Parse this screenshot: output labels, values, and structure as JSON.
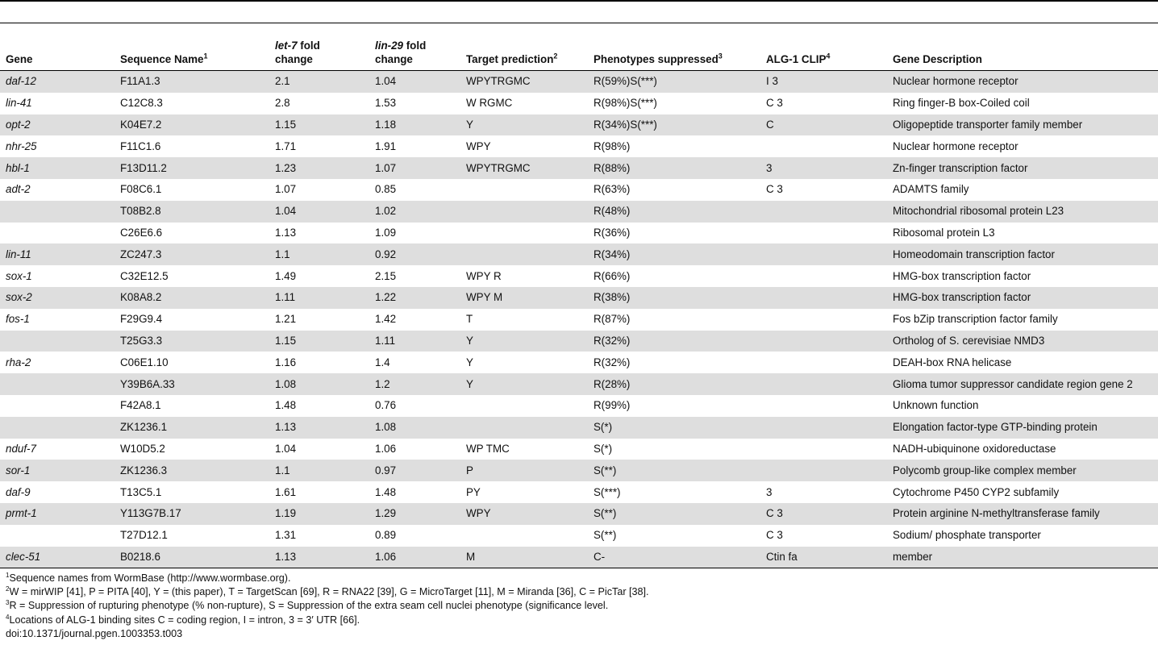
{
  "header": {
    "gene": "Gene",
    "sequence": "Sequence Name",
    "sequence_sup": "1",
    "let7_italic": "let-7",
    "let7_rest": " fold",
    "let7_line2": "change",
    "lin29_italic": "lin-29",
    "lin29_rest": " fold",
    "lin29_line2": "change",
    "target": "Target prediction",
    "target_sup": "2",
    "pheno": "Phenotypes suppressed",
    "pheno_sup": "3",
    "clip": "ALG-1 CLIP",
    "clip_sup": "4",
    "desc": "Gene Description"
  },
  "rows": [
    {
      "gene": "daf-12",
      "seq": "F11A1.3",
      "let7": "2.1",
      "lin29": "1.04",
      "target": "WPYTRGMC",
      "pheno": "R(59%)S(***)",
      "clip": "I 3",
      "desc": "Nuclear hormone receptor"
    },
    {
      "gene": "lin-41",
      "seq": "C12C8.3",
      "let7": "2.8",
      "lin29": "1.53",
      "target": "W RGMC",
      "pheno": "R(98%)S(***)",
      "clip": "C 3",
      "desc": "Ring finger-B box-Coiled coil"
    },
    {
      "gene": "opt-2",
      "seq": "K04E7.2",
      "let7": "1.15",
      "lin29": "1.18",
      "target": "Y",
      "pheno": "R(34%)S(***)",
      "clip": "C",
      "desc": "Oligopeptide transporter family member"
    },
    {
      "gene": "nhr-25",
      "seq": "F11C1.6",
      "let7": "1.71",
      "lin29": "1.91",
      "target": "WPY",
      "pheno": "R(98%)",
      "clip": "",
      "desc": "Nuclear hormone receptor"
    },
    {
      "gene": "hbl-1",
      "seq": "F13D11.2",
      "let7": "1.23",
      "lin29": "1.07",
      "target": "WPYTRGMC",
      "pheno": "R(88%)",
      "clip": "3",
      "desc": "Zn-finger transcription factor"
    },
    {
      "gene": "adt-2",
      "seq": "F08C6.1",
      "let7": "1.07",
      "lin29": "0.85",
      "target": "",
      "pheno": "R(63%)",
      "clip": "C 3",
      "desc": "ADAMTS family"
    },
    {
      "gene": "",
      "seq": "T08B2.8",
      "let7": "1.04",
      "lin29": "1.02",
      "target": "",
      "pheno": "R(48%)",
      "clip": "",
      "desc": "Mitochondrial ribosomal protein L23"
    },
    {
      "gene": "",
      "seq": "C26E6.6",
      "let7": "1.13",
      "lin29": "1.09",
      "target": "",
      "pheno": "R(36%)",
      "clip": "",
      "desc": "Ribosomal protein L3"
    },
    {
      "gene": "lin-11",
      "seq": "ZC247.3",
      "let7": "1.1",
      "lin29": "0.92",
      "target": "",
      "pheno": "R(34%)",
      "clip": "",
      "desc": "Homeodomain transcription factor"
    },
    {
      "gene": "sox-1",
      "seq": "C32E12.5",
      "let7": "1.49",
      "lin29": "2.15",
      "target": "WPY R",
      "pheno": "R(66%)",
      "clip": "",
      "desc": "HMG-box transcription factor"
    },
    {
      "gene": "sox-2",
      "seq": "K08A8.2",
      "let7": "1.11",
      "lin29": "1.22",
      "target": "WPY M",
      "pheno": "R(38%)",
      "clip": "",
      "desc": "HMG-box transcription factor"
    },
    {
      "gene": "fos-1",
      "seq": "F29G9.4",
      "let7": "1.21",
      "lin29": "1.42",
      "target": "T",
      "pheno": "R(87%)",
      "clip": "",
      "desc": "Fos bZip transcription factor family"
    },
    {
      "gene": "",
      "seq": "T25G3.3",
      "let7": "1.15",
      "lin29": "1.11",
      "target": "Y",
      "pheno": "R(32%)",
      "clip": "",
      "desc": "Ortholog of S. cerevisiae NMD3"
    },
    {
      "gene": "rha-2",
      "seq": "C06E1.10",
      "let7": "1.16",
      "lin29": "1.4",
      "target": "Y",
      "pheno": "R(32%)",
      "clip": "",
      "desc": "DEAH-box RNA helicase"
    },
    {
      "gene": "",
      "seq": "Y39B6A.33",
      "let7": "1.08",
      "lin29": "1.2",
      "target": "Y",
      "pheno": "R(28%)",
      "clip": "",
      "desc": "Glioma tumor suppressor candidate region gene 2"
    },
    {
      "gene": "",
      "seq": "F42A8.1",
      "let7": "1.48",
      "lin29": "0.76",
      "target": "",
      "pheno": "R(99%)",
      "clip": "",
      "desc": "Unknown function"
    },
    {
      "gene": "",
      "seq": "ZK1236.1",
      "let7": "1.13",
      "lin29": "1.08",
      "target": "",
      "pheno": "S(*)",
      "clip": "",
      "desc": "Elongation factor-type GTP-binding protein"
    },
    {
      "gene": "nduf-7",
      "seq": "W10D5.2",
      "let7": "1.04",
      "lin29": "1.06",
      "target": "WP TMC",
      "pheno": "S(*)",
      "clip": "",
      "desc": "NADH-ubiquinone oxidoreductase"
    },
    {
      "gene": "sor-1",
      "seq": "ZK1236.3",
      "let7": "1.1",
      "lin29": "0.97",
      "target": "P",
      "pheno": "S(**)",
      "clip": "",
      "desc": "Polycomb group-like complex member"
    },
    {
      "gene": "daf-9",
      "seq": "T13C5.1",
      "let7": "1.61",
      "lin29": "1.48",
      "target": "PY",
      "pheno": "S(***)",
      "clip": "3",
      "desc": "Cytochrome P450 CYP2 subfamily"
    },
    {
      "gene": "prmt-1",
      "seq": "Y113G7B.17",
      "let7": "1.19",
      "lin29": "1.29",
      "target": "WPY",
      "pheno": "S(**)",
      "clip": "C 3",
      "desc": "Protein arginine N-methyltransferase family"
    },
    {
      "gene": "",
      "seq": "T27D12.1",
      "let7": "1.31",
      "lin29": "0.89",
      "target": "",
      "pheno": "S(**)",
      "clip": "C 3",
      "desc": "Sodium/ phosphate transporter"
    },
    {
      "gene": "clec-51",
      "seq": "B0218.6",
      "let7": "1.13",
      "lin29": "1.06",
      "target": "M",
      "pheno": "C-",
      "clip": "Ctin fa",
      "desc": "member"
    }
  ],
  "footnotes": [
    {
      "sup": "1",
      "text": "Sequence names from WormBase (http://www.wormbase.org)."
    },
    {
      "sup": "2",
      "text": "W = mirWIP [41], P = PITA [40], Y = (this paper), T = TargetScan [69], R = RNA22 [39], G = MicroTarget [11], M = Miranda [36], C = PicTar [38]."
    },
    {
      "sup": "3",
      "text": "R = Suppression of rupturing phenotype (% non-rupture), S = Suppression of the extra seam cell nuclei phenotype (significance level."
    },
    {
      "sup": "4",
      "text": "Locations of ALG-1 binding sites C =  coding region, I = intron, 3 = 3′ UTR [66]."
    }
  ],
  "doi": "doi:10.1371/journal.pgen.1003353.t003"
}
